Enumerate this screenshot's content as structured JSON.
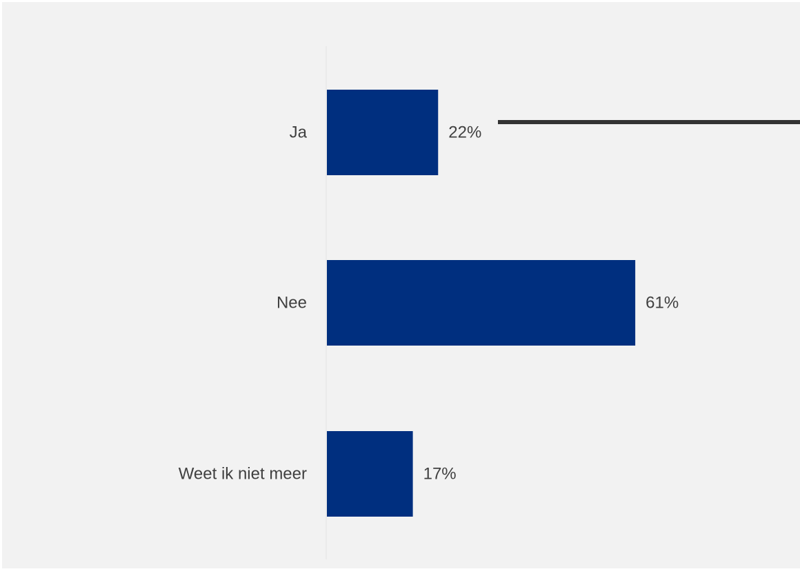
{
  "chart_data": {
    "type": "bar",
    "orientation": "horizontal",
    "categories": [
      "Ja",
      "Nee",
      "Weet ik niet meer"
    ],
    "values": [
      22,
      61,
      17
    ],
    "value_labels": [
      "22%",
      "61%",
      "17%"
    ],
    "unit": "%",
    "xlim": [
      0,
      100
    ],
    "title": "",
    "xlabel": "",
    "ylabel": "",
    "grid": false,
    "legend": "none",
    "highlight": {
      "category": "Ja",
      "marker": "line-extends-right"
    }
  },
  "colors": {
    "background": "#f2f2f2",
    "bar": "#002f7f",
    "text": "#404040",
    "axis": "#e3e3e3",
    "highlight_line": "#333333"
  }
}
